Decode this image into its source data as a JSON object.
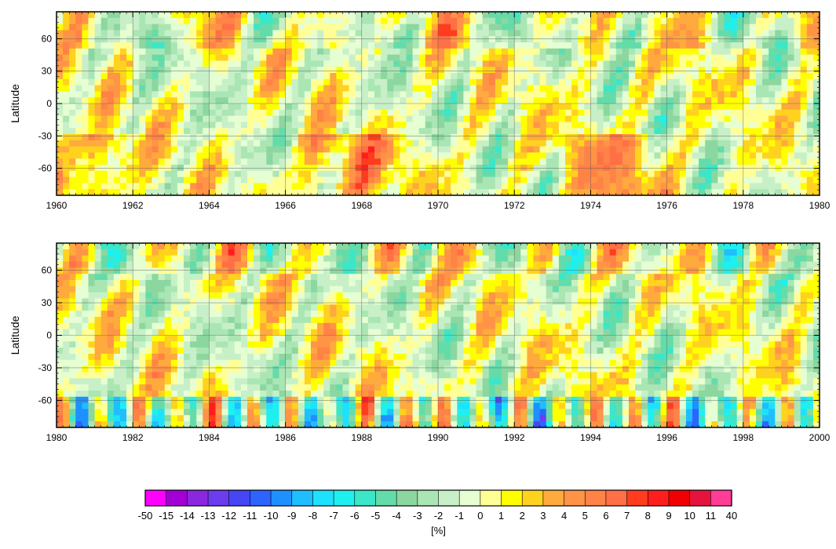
{
  "chart_data": [
    {
      "type": "heatmap",
      "ylabel": "Latitude",
      "xlim": [
        1960,
        1980
      ],
      "ylim": [
        -85,
        85
      ],
      "xticks": [
        "1960",
        "1962",
        "1964",
        "1966",
        "1968",
        "1970",
        "1972",
        "1974",
        "1976",
        "1978",
        "1980"
      ],
      "yticks": [
        {
          "value": 60,
          "label": "60"
        },
        {
          "value": 30,
          "label": "30"
        },
        {
          "value": 0,
          "label": "0"
        },
        {
          "value": -30,
          "label": "-30"
        },
        {
          "value": -60,
          "label": "-60"
        }
      ],
      "grid": true
    },
    {
      "type": "heatmap",
      "ylabel": "Latitude",
      "xlim": [
        1980,
        2000
      ],
      "ylim": [
        -85,
        85
      ],
      "xticks": [
        "1980",
        "1982",
        "1984",
        "1986",
        "1988",
        "1990",
        "1992",
        "1994",
        "1996",
        "1998",
        "2000"
      ],
      "yticks": [
        {
          "value": 60,
          "label": "60"
        },
        {
          "value": 30,
          "label": "30"
        },
        {
          "value": 0,
          "label": "0"
        },
        {
          "value": -30,
          "label": "-30"
        },
        {
          "value": -60,
          "label": "-60"
        }
      ],
      "grid": true
    }
  ],
  "colorbar": {
    "unit_label": "[%]",
    "levels": [
      "-50",
      "-15",
      "-14",
      "-13",
      "-12",
      "-11",
      "-10",
      "-9",
      "-8",
      "-7",
      "-6",
      "-5",
      "-4",
      "-3",
      "-2",
      "-1",
      "0",
      "1",
      "2",
      "3",
      "4",
      "5",
      "6",
      "7",
      "8",
      "9",
      "10",
      "11",
      "40"
    ],
    "colors": [
      "#ff00ff",
      "#a300d6",
      "#8a28e0",
      "#6b3cf0",
      "#4646f5",
      "#2d64ff",
      "#1e90ff",
      "#1ebeff",
      "#1ee1ff",
      "#1ef0f0",
      "#3ce6c8",
      "#64dcaa",
      "#8cd7a0",
      "#aae6b4",
      "#c8f0c8",
      "#e6ffd2",
      "#ffff96",
      "#ffff00",
      "#ffd21e",
      "#ffaa3c",
      "#ff9446",
      "#ff8246",
      "#ff7046",
      "#ff3c1e",
      "#ff1e1e",
      "#f00000",
      "#e6143c",
      "#ff3c96"
    ]
  }
}
